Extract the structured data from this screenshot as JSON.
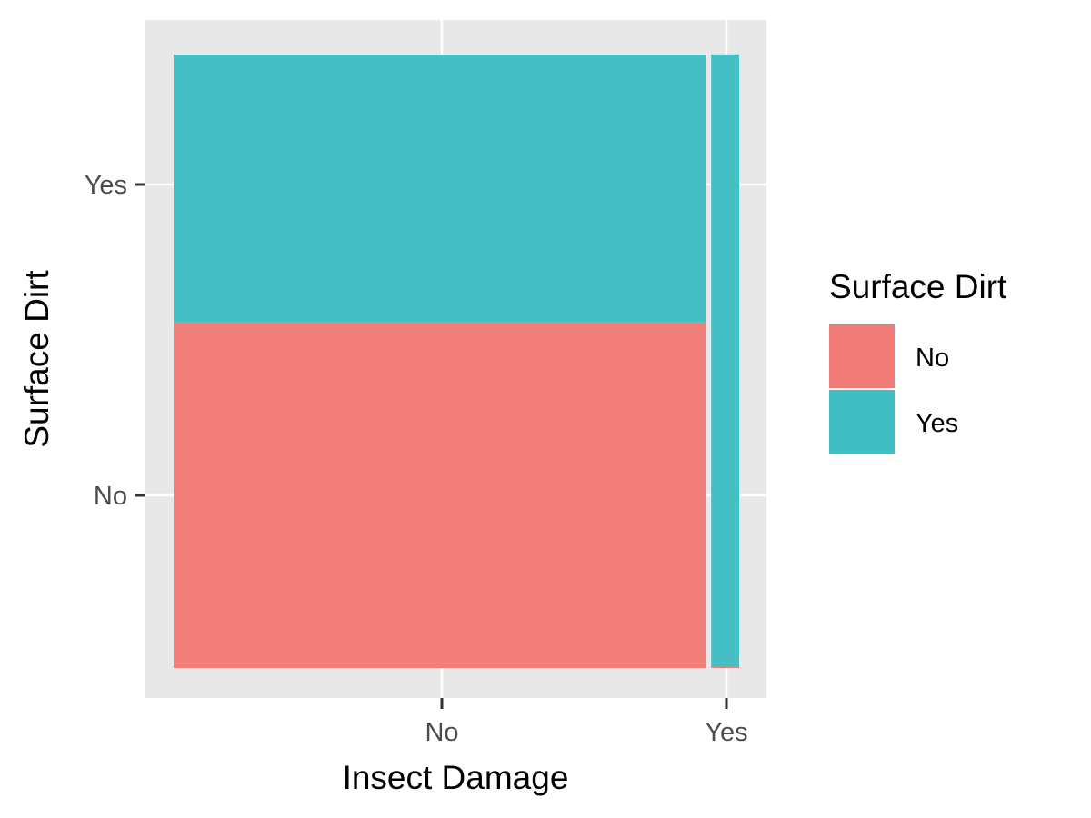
{
  "chart_data": {
    "type": "bar",
    "subtype": "mosaic",
    "xlabel": "Insect Damage",
    "ylabel": "Surface Dirt",
    "x_categories": [
      "No",
      "Yes"
    ],
    "y_categories": [
      "No",
      "Yes"
    ],
    "x_share": [
      0.95,
      0.05
    ],
    "cells": [
      {
        "x": "No",
        "fill": "No",
        "proportion": 0.56
      },
      {
        "x": "No",
        "fill": "Yes",
        "proportion": 0.44
      },
      {
        "x": "Yes",
        "fill": "No",
        "proportion": 0.002
      },
      {
        "x": "Yes",
        "fill": "Yes",
        "proportion": 0.998
      }
    ],
    "legend": {
      "title": "Surface Dirt",
      "position": "right",
      "items": [
        {
          "label": "No",
          "color": "#F17B77"
        },
        {
          "label": "Yes",
          "color": "#41BEC2"
        }
      ]
    },
    "colors": {
      "No": "#F17B77",
      "Yes": "#41BEC2"
    },
    "panel_background": "#e8e8e8",
    "grid": true
  }
}
